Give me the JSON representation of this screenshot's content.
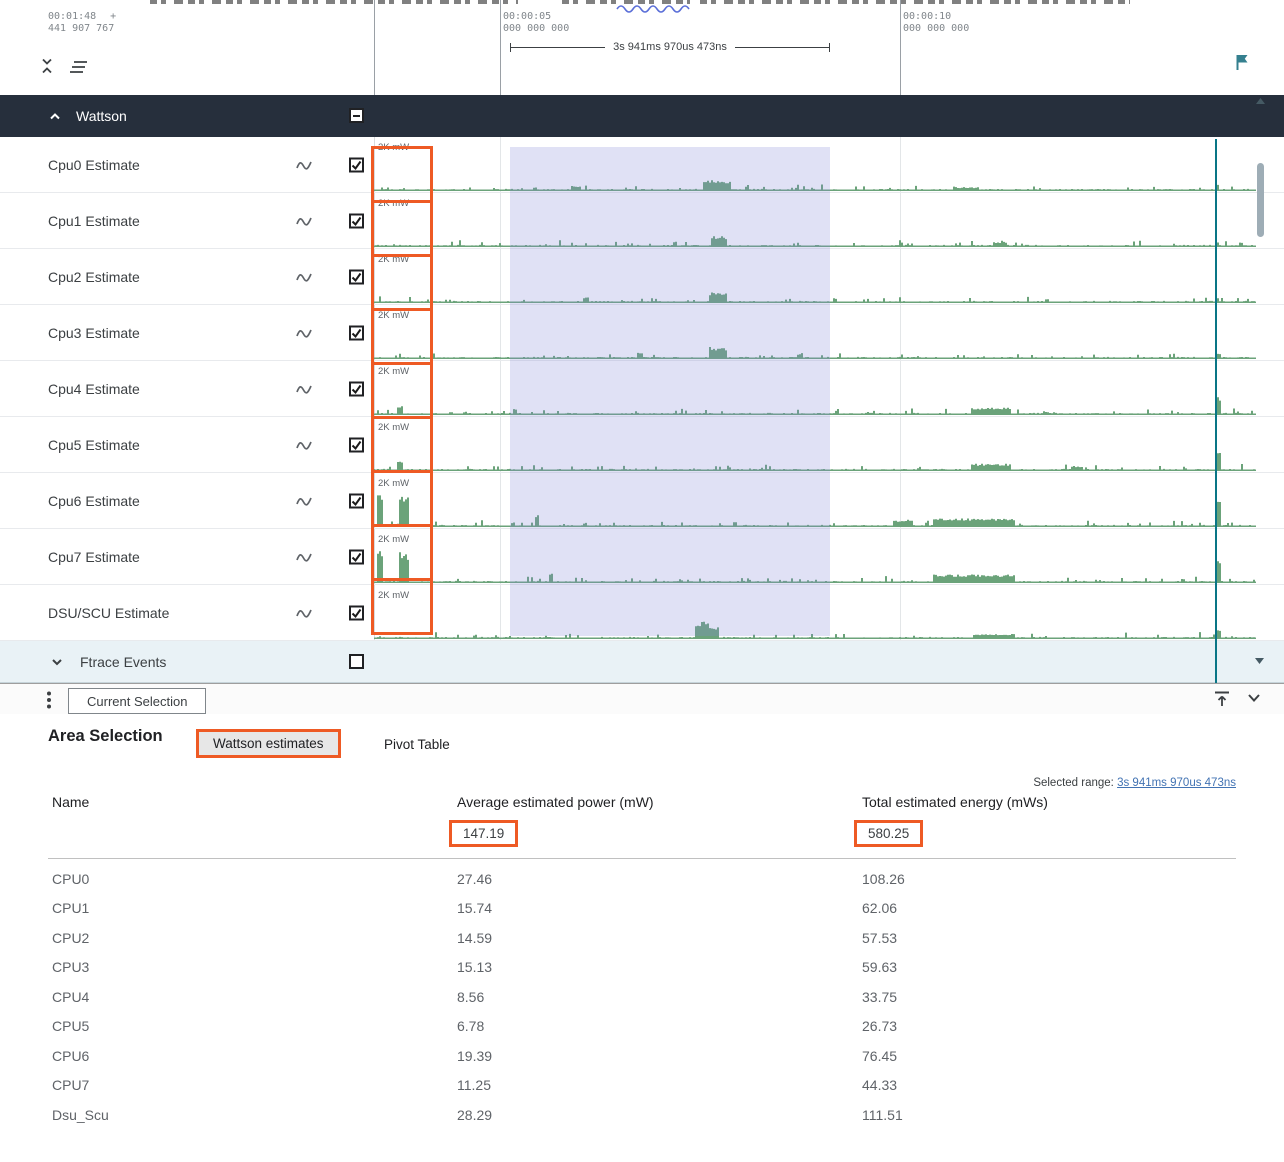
{
  "colors": {
    "annotation": "#ee5a24",
    "group_header_bg": "#262f3c",
    "sparkline": "#6ba37a",
    "selection": "rgba(130,136,216,0.25)",
    "marker": "#097686",
    "link": "#4273b3"
  },
  "icons": {
    "collapse_tracks": "unfold-less-icon",
    "track_filter": "clear-all-icon",
    "flag": "flag-icon",
    "counter_track": "line-chart-icon",
    "menu": "kebab-menu-icon",
    "dock_top": "vertical-align-top-icon"
  },
  "timeline": {
    "origin": {
      "time": "00:01:48",
      "marker": "+",
      "abs": "441 907 767"
    },
    "ticks": [
      {
        "time": "00:00:05",
        "abs": "000 000 000"
      },
      {
        "time": "00:00:10",
        "abs": "000 000 000"
      }
    ],
    "measure_label": "3s 941ms 970us 473ns"
  },
  "track_panel": {
    "group_label": "Wattson",
    "collapsed_group_label": "Ftrace Events",
    "tracks": [
      {
        "name": "Cpu0 Estimate",
        "scale": "2K mW"
      },
      {
        "name": "Cpu1 Estimate",
        "scale": "2K mW"
      },
      {
        "name": "Cpu2 Estimate",
        "scale": "2K mW"
      },
      {
        "name": "Cpu3 Estimate",
        "scale": "2K mW"
      },
      {
        "name": "Cpu4 Estimate",
        "scale": "2K mW"
      },
      {
        "name": "Cpu5 Estimate",
        "scale": "2K mW"
      },
      {
        "name": "Cpu6 Estimate",
        "scale": "2K mW"
      },
      {
        "name": "Cpu7 Estimate",
        "scale": "2K mW"
      },
      {
        "name": "DSU/SCU Estimate",
        "scale": "2K mW"
      }
    ]
  },
  "details": {
    "current_tab": "Current Selection",
    "heading": "Area Selection",
    "tab_wattson": "Wattson estimates",
    "tab_pivot": "Pivot Table",
    "selected_range_label": "Selected range:",
    "selected_range_value": "3s 941ms 970us 473ns",
    "table": {
      "columns": [
        "Name",
        "Average estimated power (mW)",
        "Total estimated energy (mWs)"
      ],
      "totals": {
        "avg_power": "147.19",
        "total_energy": "580.25"
      },
      "rows": [
        {
          "name": "CPU0",
          "avg_power": "27.46",
          "total_energy": "108.26"
        },
        {
          "name": "CPU1",
          "avg_power": "15.74",
          "total_energy": "62.06"
        },
        {
          "name": "CPU2",
          "avg_power": "14.59",
          "total_energy": "57.53"
        },
        {
          "name": "CPU3",
          "avg_power": "15.13",
          "total_energy": "59.63"
        },
        {
          "name": "CPU4",
          "avg_power": "8.56",
          "total_energy": "33.75"
        },
        {
          "name": "CPU5",
          "avg_power": "6.78",
          "total_energy": "26.73"
        },
        {
          "name": "CPU6",
          "avg_power": "19.39",
          "total_energy": "76.45"
        },
        {
          "name": "CPU7",
          "avg_power": "11.25",
          "total_energy": "44.33"
        },
        {
          "name": "Dsu_Scu",
          "avg_power": "28.29",
          "total_energy": "111.51"
        }
      ]
    }
  }
}
